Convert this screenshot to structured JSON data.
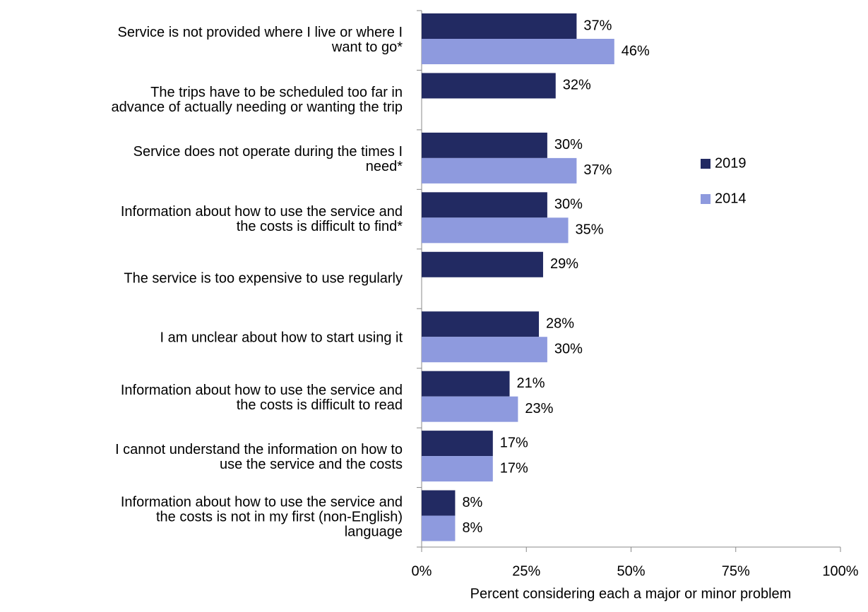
{
  "chart_data": {
    "type": "bar",
    "orientation": "horizontal",
    "x_label": "Percent considering each a major or minor problem",
    "categories": [
      "Service is not provided where I live or where I\nwant to go*",
      "The trips have to be scheduled too far in\nadvance of actually needing or wanting the trip",
      "Service does not operate during the times I\nneed*",
      "Information about how to use the service and\nthe costs is difficult to find*",
      "The service is too expensive to use regularly",
      "I am unclear about how to start using it",
      "Information about how to use the service and\nthe costs is difficult to read",
      "I cannot understand the information on how to\nuse the service and the costs",
      "Information about how to use the service and\nthe costs is not in my first (non-English)\nlanguage"
    ],
    "series": [
      {
        "name": "2019",
        "color": "#222a62",
        "values": [
          37,
          32,
          30,
          30,
          29,
          28,
          21,
          17,
          8
        ],
        "value_labels": [
          "37%",
          "32%",
          "30%",
          "30%",
          "29%",
          "28%",
          "21%",
          "17%",
          "8%"
        ]
      },
      {
        "name": "2014",
        "color": "#8e9ade",
        "values": [
          46,
          null,
          37,
          35,
          null,
          30,
          23,
          17,
          8
        ],
        "value_labels": [
          "46%",
          null,
          "37%",
          "35%",
          null,
          "30%",
          "23%",
          "17%",
          "8%"
        ]
      }
    ],
    "xlim": [
      0,
      100
    ],
    "xticks": [
      {
        "value": 0,
        "label": "0%"
      },
      {
        "value": 25,
        "label": "25%"
      },
      {
        "value": 50,
        "label": "50%"
      },
      {
        "value": 75,
        "label": "75%"
      },
      {
        "value": 100,
        "label": "100%"
      }
    ],
    "legend": "right"
  }
}
